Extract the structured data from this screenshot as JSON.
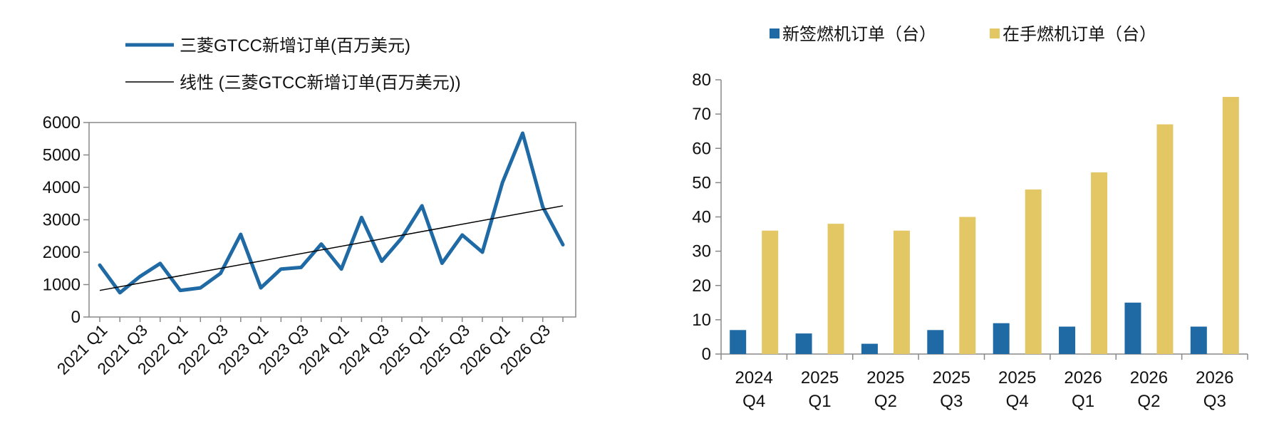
{
  "charts": {
    "left": {
      "type": "line",
      "legend": {
        "series_label": "三菱GTCC新增订单(百万美元)",
        "trend_label": "线性 (三菱GTCC新增订单(百万美元))"
      }
    },
    "right": {
      "type": "bar",
      "legend": {
        "new_label": "新签燃机订单（台）",
        "backlog_label": "在手燃机订单（台）"
      }
    }
  },
  "chart_data": [
    {
      "type": "line",
      "x": [
        "2021 Q1",
        "2021 Q2",
        "2021 Q3",
        "2021 Q4",
        "2022 Q1",
        "2022 Q2",
        "2022 Q3",
        "2022 Q4",
        "2023 Q1",
        "2023 Q2",
        "2023 Q3",
        "2023 Q4",
        "2024 Q1",
        "2024 Q2",
        "2024 Q3",
        "2024 Q4",
        "2025 Q1",
        "2025 Q2",
        "2025 Q3",
        "2025 Q4",
        "2026 Q1",
        "2026 Q2",
        "2026 Q3",
        "2026 Q4"
      ],
      "x_tick_labels": [
        "2021 Q1",
        "2021 Q3",
        "2022 Q1",
        "2022 Q3",
        "2023 Q1",
        "2023 Q3",
        "2024 Q1",
        "2024 Q3",
        "2025 Q1",
        "2025 Q3",
        "2026 Q1",
        "2026 Q3"
      ],
      "series": [
        {
          "name": "三菱GTCC新增订单(百万美元)",
          "color": "#1f6aa5",
          "values": [
            1600,
            750,
            1250,
            1650,
            820,
            900,
            1350,
            2550,
            900,
            1480,
            1530,
            2250,
            1480,
            3070,
            1720,
            2440,
            3430,
            1660,
            2530,
            2000,
            4150,
            5670,
            3400,
            2230
          ]
        },
        {
          "name": "线性 (三菱GTCC新增订单(百万美元))",
          "color": "#000000",
          "trend": "linear",
          "start": 820,
          "end": 3430
        }
      ],
      "ylim": [
        0,
        6000
      ],
      "yticks": [
        0,
        1000,
        2000,
        3000,
        4000,
        5000,
        6000
      ],
      "grid": false,
      "legend_position": "top"
    },
    {
      "type": "bar",
      "categories": [
        [
          "2024",
          "Q4"
        ],
        [
          "2025",
          "Q1"
        ],
        [
          "2025",
          "Q2"
        ],
        [
          "2025",
          "Q3"
        ],
        [
          "2025",
          "Q4"
        ],
        [
          "2026",
          "Q1"
        ],
        [
          "2026",
          "Q2"
        ],
        [
          "2026",
          "Q3"
        ]
      ],
      "series": [
        {
          "name": "新签燃机订单（台）",
          "color": "#1f6aa5",
          "values": [
            7,
            6,
            3,
            7,
            9,
            8,
            15,
            8
          ]
        },
        {
          "name": "在手燃机订单（台）",
          "color": "#e3c765",
          "values": [
            36,
            38,
            36,
            40,
            48,
            53,
            67,
            75
          ]
        }
      ],
      "ylim": [
        0,
        80
      ],
      "yticks": [
        0,
        10,
        20,
        30,
        40,
        50,
        60,
        70,
        80
      ],
      "grid": false,
      "legend_position": "top"
    }
  ]
}
